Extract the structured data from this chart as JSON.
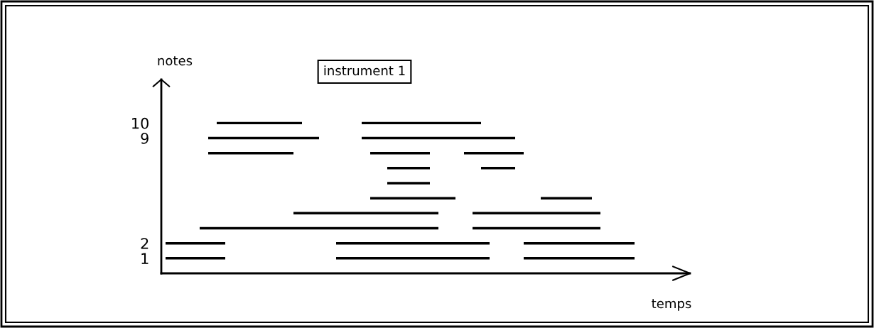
{
  "chart_data": {
    "type": "line",
    "tick_labels": "y",
    "title": "instrument 1",
    "xlabel": "temps",
    "ylabel": "notes",
    "ylim": [
      0,
      12.9
    ],
    "yticks": [
      1,
      2,
      9,
      10
    ],
    "categories": [
      null,
      null,
      null,
      null,
      null,
      null,
      null,
      null,
      null,
      null,
      null,
      null,
      null,
      null,
      null,
      null,
      null,
      null,
      null,
      null,
      null,
      null,
      null,
      null,
      null,
      null,
      null,
      null,
      null,
      null,
      null,
      null,
      null,
      null,
      null,
      null,
      null,
      null,
      null,
      null,
      null,
      null,
      null,
      null,
      null,
      null,
      null,
      null,
      null,
      null,
      null,
      null,
      null,
      null,
      null,
      null,
      null,
      null,
      null,
      null,
      null,
      null
    ],
    "series": [
      {
        "color": "#000000",
        "values": [
          null,
          null,
          null,
          null,
          null,
          null,
          10,
          10,
          10,
          10,
          10,
          10,
          10,
          10,
          10,
          10,
          10,
          null,
          null,
          null,
          null,
          null,
          null,
          10,
          10,
          10,
          10,
          10,
          10,
          10,
          10,
          10,
          10,
          10,
          10,
          10,
          10,
          10,
          null,
          null,
          null,
          null,
          null,
          null,
          null,
          null,
          null,
          null,
          null,
          null,
          null,
          null,
          null,
          null,
          null,
          null,
          null,
          null,
          null,
          null,
          null,
          null
        ]
      },
      {
        "color": "#000000",
        "values": [
          null,
          null,
          null,
          null,
          null,
          9,
          9,
          9,
          9,
          9,
          9,
          9,
          9,
          9,
          9,
          9,
          9,
          9,
          9,
          null,
          null,
          null,
          null,
          9,
          9,
          9,
          9,
          9,
          9,
          9,
          9,
          9,
          9,
          9,
          9,
          9,
          9,
          9,
          9,
          9,
          9,
          9,
          null,
          null,
          null,
          null,
          null,
          null,
          null,
          null,
          null,
          null,
          null,
          null,
          null,
          null,
          null,
          null,
          null,
          null,
          null,
          null
        ]
      },
      {
        "color": "#000000",
        "values": [
          null,
          null,
          null,
          null,
          null,
          8,
          8,
          8,
          8,
          8,
          8,
          8,
          8,
          8,
          8,
          8,
          null,
          null,
          null,
          null,
          null,
          null,
          null,
          null,
          8,
          8,
          8,
          8,
          8,
          8,
          8,
          8,
          null,
          null,
          null,
          8,
          8,
          8,
          8,
          8,
          8,
          8,
          8,
          null,
          null,
          null,
          null,
          null,
          null,
          null,
          null,
          null,
          null,
          null,
          null,
          null,
          null,
          null,
          null,
          null,
          null,
          null
        ]
      },
      {
        "color": "#000000",
        "values": [
          null,
          null,
          null,
          null,
          null,
          null,
          null,
          null,
          null,
          null,
          null,
          null,
          null,
          null,
          null,
          null,
          null,
          null,
          null,
          null,
          null,
          null,
          null,
          null,
          null,
          null,
          7,
          7,
          7,
          7,
          7,
          7,
          null,
          null,
          null,
          null,
          null,
          7,
          7,
          7,
          7,
          7,
          null,
          null,
          null,
          null,
          null,
          null,
          null,
          null,
          null,
          null,
          null,
          null,
          null,
          null,
          null,
          null,
          null,
          null,
          null,
          null
        ]
      },
      {
        "color": "#000000",
        "values": [
          null,
          null,
          null,
          null,
          null,
          null,
          null,
          null,
          null,
          null,
          null,
          null,
          null,
          null,
          null,
          null,
          null,
          null,
          null,
          null,
          null,
          null,
          null,
          null,
          null,
          null,
          6,
          6,
          6,
          6,
          6,
          6,
          null,
          null,
          null,
          null,
          null,
          null,
          null,
          null,
          null,
          null,
          null,
          null,
          null,
          null,
          null,
          null,
          null,
          null,
          null,
          null,
          null,
          null,
          null,
          null,
          null,
          null,
          null,
          null,
          null,
          null
        ]
      },
      {
        "color": "#000000",
        "values": [
          null,
          null,
          null,
          null,
          null,
          null,
          null,
          null,
          null,
          null,
          null,
          null,
          null,
          null,
          null,
          null,
          null,
          null,
          null,
          null,
          null,
          null,
          null,
          null,
          5,
          5,
          5,
          5,
          5,
          5,
          5,
          5,
          5,
          5,
          5,
          null,
          null,
          null,
          null,
          null,
          null,
          null,
          null,
          null,
          5,
          5,
          5,
          5,
          5,
          5,
          5,
          null,
          null,
          null,
          null,
          null,
          null,
          null,
          null,
          null,
          null,
          null
        ]
      },
      {
        "color": "#000000",
        "values": [
          null,
          null,
          null,
          null,
          null,
          null,
          null,
          null,
          null,
          null,
          null,
          null,
          null,
          null,
          null,
          4,
          4,
          4,
          4,
          4,
          4,
          4,
          4,
          4,
          4,
          4,
          4,
          4,
          4,
          4,
          4,
          4,
          4,
          null,
          null,
          null,
          4,
          4,
          4,
          4,
          4,
          4,
          4,
          4,
          4,
          4,
          4,
          4,
          4,
          4,
          4,
          4,
          null,
          null,
          null,
          null,
          null,
          null,
          null,
          null,
          null,
          null
        ]
      },
      {
        "color": "#000000",
        "values": [
          null,
          null,
          null,
          null,
          3,
          3,
          3,
          3,
          3,
          3,
          3,
          3,
          3,
          3,
          3,
          3,
          3,
          3,
          3,
          3,
          3,
          3,
          3,
          3,
          3,
          3,
          3,
          3,
          3,
          3,
          3,
          3,
          3,
          null,
          null,
          null,
          3,
          3,
          3,
          3,
          3,
          3,
          3,
          3,
          3,
          3,
          3,
          3,
          3,
          3,
          3,
          3,
          null,
          null,
          null,
          null,
          null,
          null,
          null,
          null,
          null,
          null
        ]
      },
      {
        "color": "#000000",
        "values": [
          2,
          2,
          2,
          2,
          2,
          2,
          2,
          2,
          null,
          null,
          null,
          null,
          null,
          null,
          null,
          null,
          null,
          null,
          null,
          null,
          2,
          2,
          2,
          2,
          2,
          2,
          2,
          2,
          2,
          2,
          2,
          2,
          2,
          2,
          2,
          2,
          2,
          2,
          2,
          null,
          null,
          null,
          2,
          2,
          2,
          2,
          2,
          2,
          2,
          2,
          2,
          2,
          2,
          2,
          2,
          2,
          null,
          null,
          null,
          null,
          null,
          null
        ]
      },
      {
        "color": "#000000",
        "values": [
          1,
          1,
          1,
          1,
          1,
          1,
          1,
          1,
          null,
          null,
          null,
          null,
          null,
          null,
          null,
          null,
          null,
          null,
          null,
          null,
          1,
          1,
          1,
          1,
          1,
          1,
          1,
          1,
          1,
          1,
          1,
          1,
          1,
          1,
          1,
          1,
          1,
          1,
          1,
          null,
          null,
          null,
          1,
          1,
          1,
          1,
          1,
          1,
          1,
          1,
          1,
          1,
          1,
          1,
          1,
          1,
          null,
          null,
          null,
          null,
          null,
          null
        ]
      }
    ]
  }
}
